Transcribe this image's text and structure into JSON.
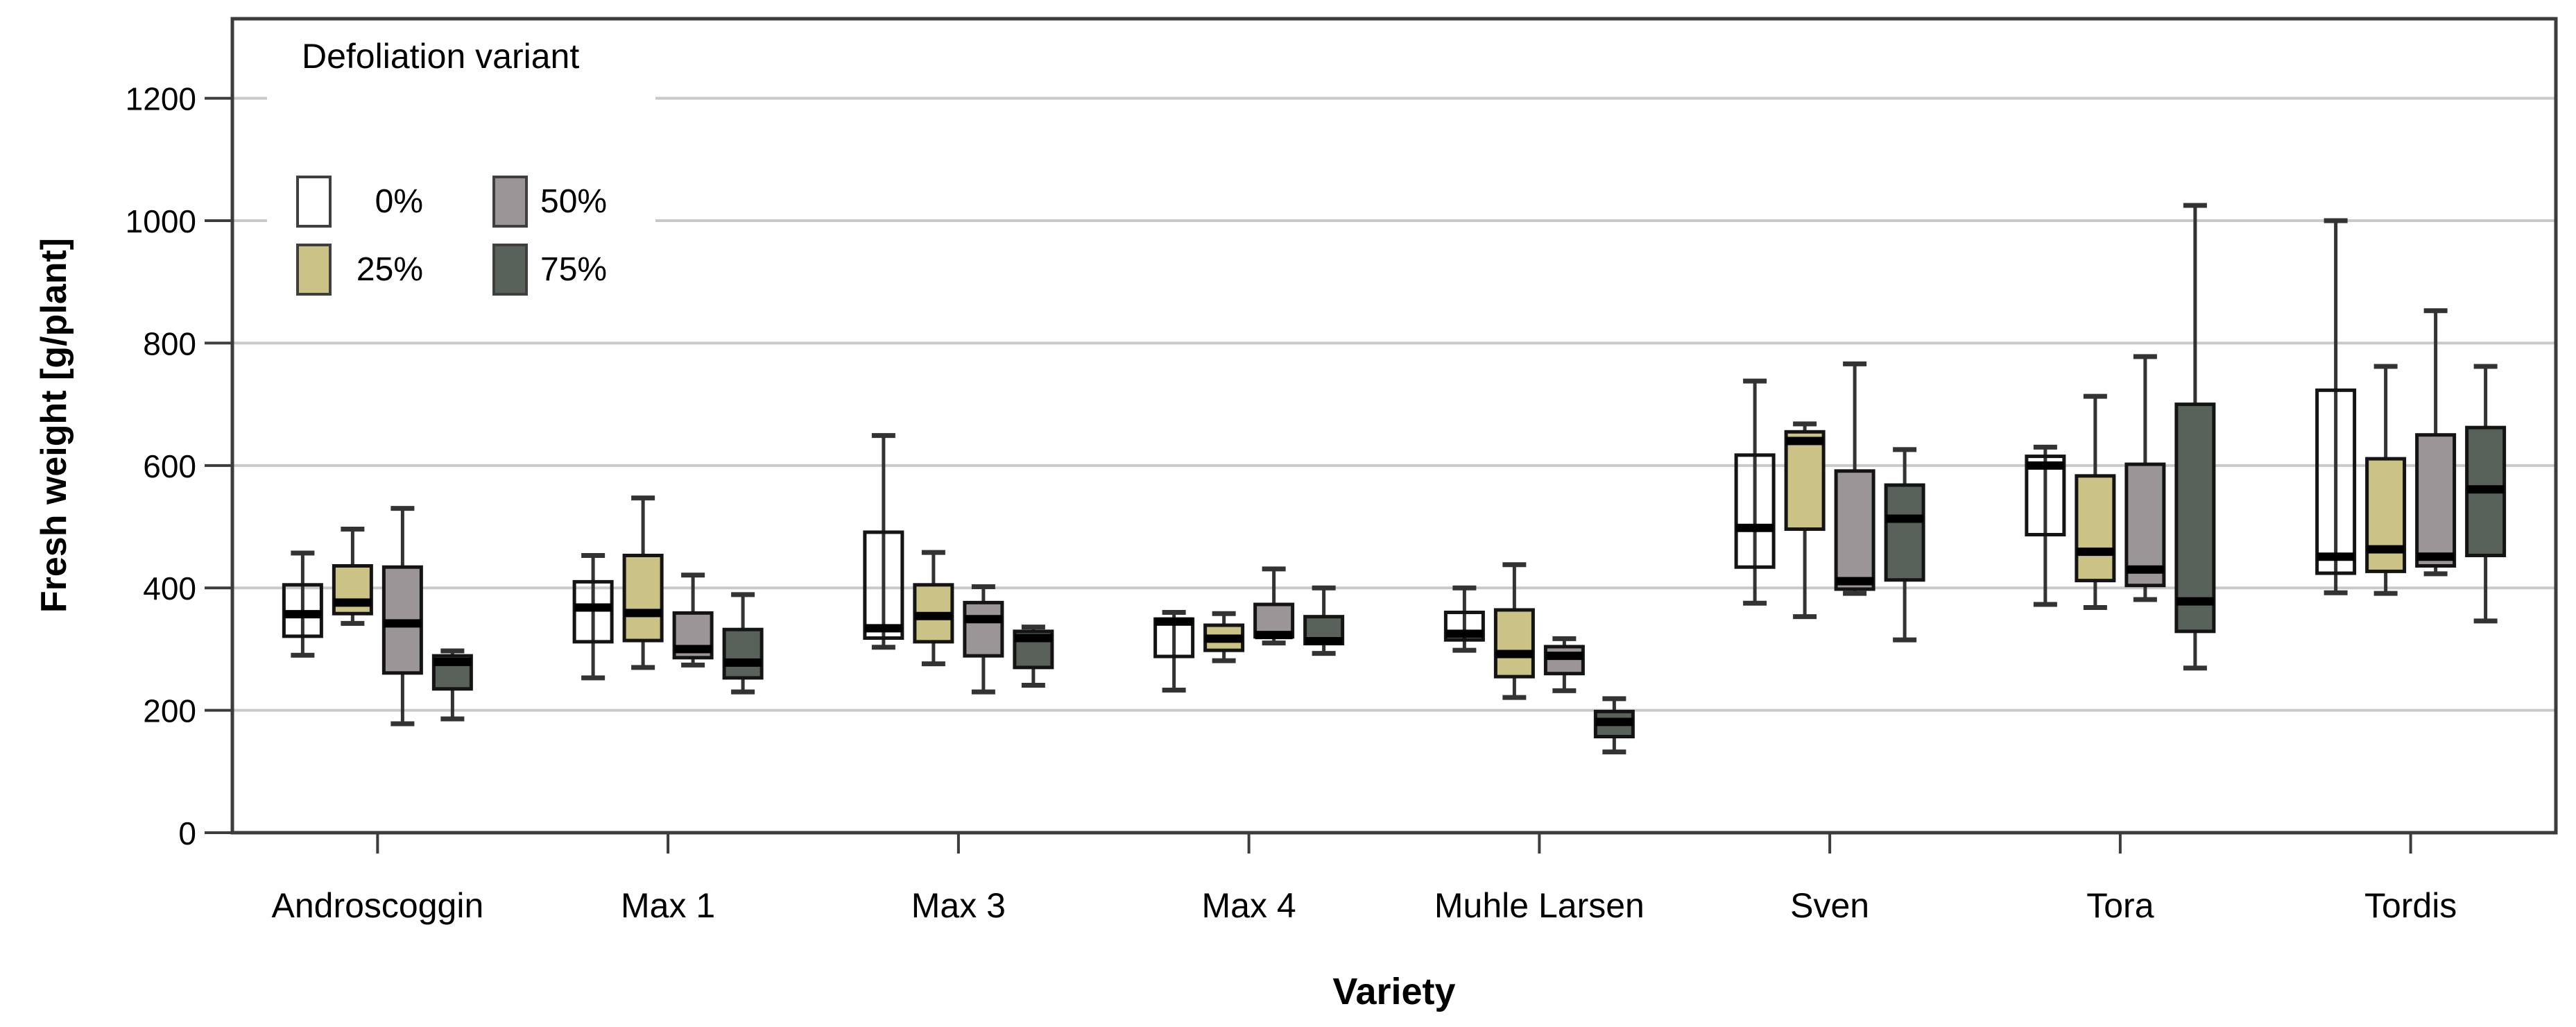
{
  "chart_data": {
    "type": "boxplot",
    "title": "",
    "xlabel": "Variety",
    "ylabel": "Fresh weight [g/plant]",
    "ylim": [
      0,
      1330
    ],
    "yticks": [
      0,
      200,
      400,
      600,
      800,
      1000,
      1200
    ],
    "grid": "horizontal-only, light gray, at ticks 200-1200",
    "legend_position": "top-left, 2x2 grid, white background",
    "categories": [
      "Androscoggin",
      "Max 1",
      "Max 3",
      "Max 4",
      "Muhle Larsen",
      "Sven",
      "Tora",
      "Tordis"
    ],
    "legend": {
      "title": "Defoliation variant",
      "items": [
        {
          "label": "0%",
          "color": "#ffffff"
        },
        {
          "label": "25%",
          "color": "#cbc386"
        },
        {
          "label": "50%",
          "color": "#9b9597"
        },
        {
          "label": "75%",
          "color": "#59615b"
        }
      ]
    },
    "series": [
      {
        "name": "0%",
        "fill": "transparent",
        "legend_color": "#ffffff",
        "boxes": [
          {
            "min": 290,
            "q1": 321,
            "median": 357,
            "q3": 405,
            "max": 457
          },
          {
            "min": 253,
            "q1": 312,
            "median": 368,
            "q3": 410,
            "max": 453
          },
          {
            "min": 303,
            "q1": 318,
            "median": 334,
            "q3": 491,
            "max": 649
          },
          {
            "min": 233,
            "q1": 288,
            "median": 345,
            "q3": 349,
            "max": 360
          },
          {
            "min": 298,
            "q1": 315,
            "median": 325,
            "q3": 360,
            "max": 400
          },
          {
            "min": 375,
            "q1": 434,
            "median": 498,
            "q3": 617,
            "max": 738
          },
          {
            "min": 373,
            "q1": 487,
            "median": 600,
            "q3": 615,
            "max": 630
          },
          {
            "min": 392,
            "q1": 424,
            "median": 451,
            "q3": 723,
            "max": 1000
          }
        ]
      },
      {
        "name": "25%",
        "fill": "#cbc386",
        "legend_color": "#cbc386",
        "boxes": [
          {
            "min": 342,
            "q1": 358,
            "median": 376,
            "q3": 436,
            "max": 496
          },
          {
            "min": 270,
            "q1": 314,
            "median": 359,
            "q3": 453,
            "max": 547
          },
          {
            "min": 276,
            "q1": 312,
            "median": 354,
            "q3": 405,
            "max": 458
          },
          {
            "min": 281,
            "q1": 298,
            "median": 317,
            "q3": 339,
            "max": 358
          },
          {
            "min": 221,
            "q1": 255,
            "median": 292,
            "q3": 364,
            "max": 438
          },
          {
            "min": 353,
            "q1": 496,
            "median": 640,
            "q3": 655,
            "max": 668
          },
          {
            "min": 368,
            "q1": 412,
            "median": 459,
            "q3": 583,
            "max": 713
          },
          {
            "min": 391,
            "q1": 427,
            "median": 463,
            "q3": 611,
            "max": 762
          }
        ]
      },
      {
        "name": "50%",
        "fill": "#9b9597",
        "legend_color": "#9b9597",
        "boxes": [
          {
            "min": 178,
            "q1": 261,
            "median": 342,
            "q3": 434,
            "max": 530
          },
          {
            "min": 274,
            "q1": 286,
            "median": 300,
            "q3": 359,
            "max": 421
          },
          {
            "min": 230,
            "q1": 289,
            "median": 349,
            "q3": 376,
            "max": 402
          },
          {
            "min": 310,
            "q1": 320,
            "median": 323,
            "q3": 373,
            "max": 431
          },
          {
            "min": 232,
            "q1": 260,
            "median": 289,
            "q3": 304,
            "max": 317
          },
          {
            "min": 391,
            "q1": 398,
            "median": 411,
            "q3": 591,
            "max": 766
          },
          {
            "min": 381,
            "q1": 404,
            "median": 430,
            "q3": 602,
            "max": 778
          },
          {
            "min": 423,
            "q1": 436,
            "median": 451,
            "q3": 650,
            "max": 853
          }
        ]
      },
      {
        "name": "75%",
        "fill": "#59615b",
        "legend_color": "#59615b",
        "boxes": [
          {
            "min": 186,
            "q1": 235,
            "median": 279,
            "q3": 289,
            "max": 297
          },
          {
            "min": 230,
            "q1": 253,
            "median": 278,
            "q3": 332,
            "max": 389
          },
          {
            "min": 241,
            "q1": 270,
            "median": 318,
            "q3": 329,
            "max": 336
          },
          {
            "min": 293,
            "q1": 309,
            "median": 313,
            "q3": 353,
            "max": 400
          },
          {
            "min": 132,
            "q1": 157,
            "median": 181,
            "q3": 198,
            "max": 219
          },
          {
            "min": 315,
            "q1": 413,
            "median": 513,
            "q3": 568,
            "max": 626
          },
          {
            "min": 269,
            "q1": 329,
            "median": 378,
            "q3": 700,
            "max": 1025
          },
          {
            "min": 346,
            "q1": 453,
            "median": 561,
            "q3": 662,
            "max": 762
          }
        ]
      }
    ],
    "colors": {
      "frame": "#3c3c3c",
      "gridline": "#c9c9c9",
      "box_stroke": "#141414",
      "whisker": "#333333",
      "median": "#000000"
    }
  }
}
